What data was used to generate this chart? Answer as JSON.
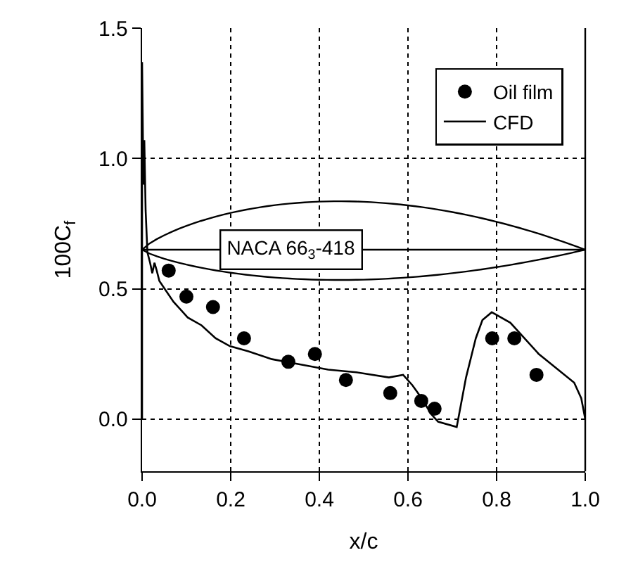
{
  "chart_data": {
    "type": "scatter",
    "xlabel": "x/c",
    "ylabel": "100C$_{f}$",
    "xlim": [
      0,
      1
    ],
    "ylim": [
      -0.2,
      1.5
    ],
    "xticks": [
      {
        "value": 0,
        "label": "0.0"
      },
      0.2,
      0.4,
      0.6,
      0.8,
      {
        "value": 1,
        "label": "1.0"
      }
    ],
    "yticks": [
      {
        "value": 0,
        "label": "0.0"
      },
      0.5,
      {
        "value": 1,
        "label": "1.0"
      },
      1.5
    ],
    "grid": true,
    "legend": "top right",
    "ref_lines": [
      {
        "axis": "y",
        "value": 0.65,
        "color": "#000000",
        "line_style": "solid"
      }
    ],
    "annotations": [
      "NACA 66$_{3}$-418"
    ],
    "series": [
      {
        "name": "Oil film",
        "marker": "circle",
        "color": "#000000",
        "x": [
          0.06,
          0.1,
          0.16,
          0.23,
          0.33,
          0.39,
          0.46,
          0.56,
          0.63,
          0.66,
          0.79,
          0.84,
          0.89
        ],
        "values": [
          0.57,
          0.47,
          0.43,
          0.31,
          0.22,
          0.25,
          0.15,
          0.1,
          0.07,
          0.04,
          0.31,
          0.31,
          0.17
        ]
      },
      {
        "name": "CFD",
        "type": "line",
        "marker": "none",
        "line_style": "solid",
        "color": "#000000",
        "x": [
          0.0,
          0.0,
          0.003,
          0.005,
          0.008,
          0.012,
          0.018,
          0.023,
          0.028,
          0.033,
          0.039,
          0.071,
          0.103,
          0.134,
          0.166,
          0.198,
          0.24,
          0.293,
          0.356,
          0.42,
          0.483,
          0.557,
          0.589,
          0.61,
          0.631,
          0.652,
          0.668,
          0.71,
          0.731,
          0.753,
          0.768,
          0.789,
          0.831,
          0.895,
          0.975,
          0.991,
          1.0
        ],
        "values": [
          0.0,
          1.37,
          0.9,
          1.07,
          0.8,
          0.64,
          0.6,
          0.56,
          0.6,
          0.57,
          0.53,
          0.45,
          0.39,
          0.36,
          0.31,
          0.28,
          0.26,
          0.23,
          0.21,
          0.19,
          0.18,
          0.16,
          0.17,
          0.13,
          0.08,
          0.02,
          -0.01,
          -0.03,
          0.16,
          0.31,
          0.38,
          0.41,
          0.37,
          0.25,
          0.14,
          0.08,
          0.0
        ]
      }
    ]
  }
}
